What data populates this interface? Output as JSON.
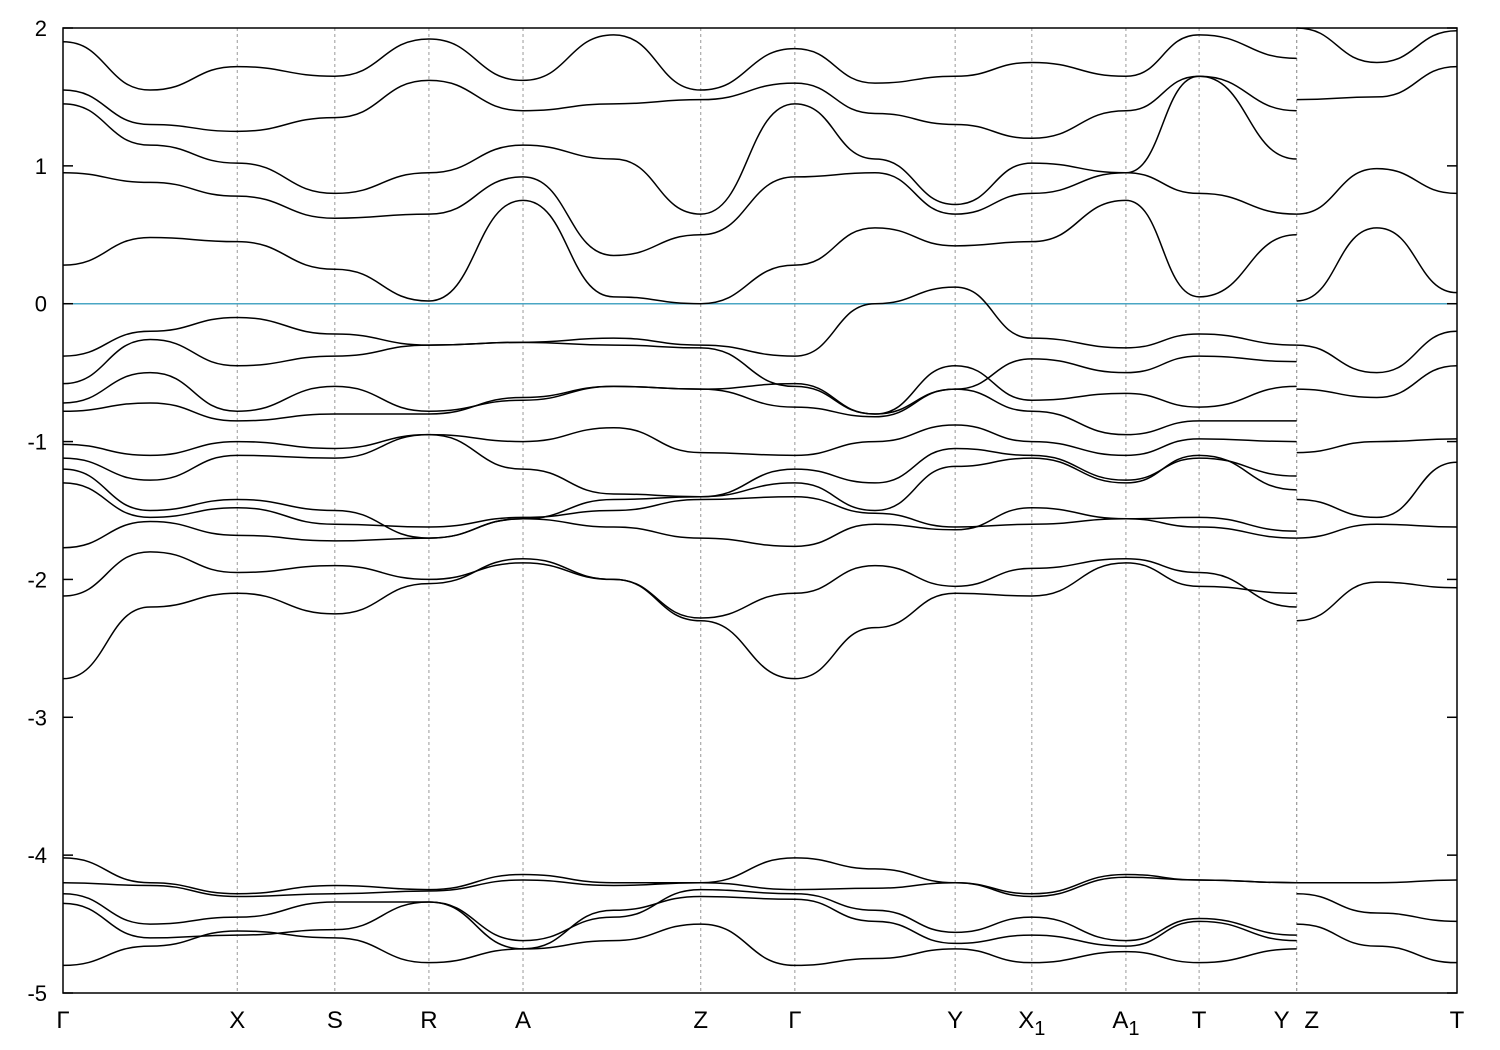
{
  "chart_data": {
    "type": "line",
    "title": "",
    "xlabel": "",
    "ylabel": "",
    "ylim": [
      -5,
      2
    ],
    "yticks": [
      2,
      1,
      0,
      -1,
      -2,
      -3,
      -4,
      -5
    ],
    "grid": false,
    "legend": "none",
    "fermi_level": 0,
    "colors": {
      "bands": "#000000",
      "fermi": "#4aa6c4",
      "kpoint_lines": "#999999"
    },
    "kpoints": [
      {
        "label": "Γ",
        "sub": "",
        "x": 0.0
      },
      {
        "label": "X",
        "sub": "",
        "x": 0.5
      },
      {
        "label": "S",
        "sub": "",
        "x": 0.78
      },
      {
        "label": "R",
        "sub": "",
        "x": 1.05
      },
      {
        "label": "A",
        "sub": "",
        "x": 1.32
      },
      {
        "label": "Z",
        "sub": "",
        "x": 1.83
      },
      {
        "label": "Γ",
        "sub": "",
        "x": 2.1
      },
      {
        "label": "Y",
        "sub": "",
        "x": 2.56
      },
      {
        "label": "X",
        "sub": "1",
        "x": 2.78
      },
      {
        "label": "A",
        "sub": "1",
        "x": 3.05
      },
      {
        "label": "T",
        "sub": "",
        "x": 3.26
      },
      {
        "label": "Y",
        "sub": "",
        "x": 3.54
      },
      {
        "label": "Z",
        "sub": "",
        "x": 3.54
      },
      {
        "label": "T",
        "sub": "",
        "x": 4.0
      }
    ],
    "xlim": [
      0,
      4.0
    ],
    "segment_break_x": 3.54,
    "series": [
      {
        "x": [
          0,
          0.25,
          0.5,
          0.78,
          1.05,
          1.32,
          1.58,
          1.83,
          2.1,
          2.33,
          2.56,
          2.78,
          3.05,
          3.26,
          3.54
        ],
        "y": [
          -2.72,
          -2.2,
          -2.1,
          -2.25,
          -2.03,
          -1.85,
          -2.0,
          -2.3,
          -2.72,
          -2.35,
          -2.1,
          -2.12,
          -1.88,
          -2.05,
          -2.1
        ]
      },
      {
        "x": [
          0,
          0.25,
          0.5,
          0.78,
          1.05,
          1.32,
          1.58,
          1.83,
          2.1,
          2.33,
          2.56,
          2.78,
          3.05,
          3.26,
          3.54
        ],
        "y": [
          -2.12,
          -1.8,
          -1.95,
          -1.9,
          -2.0,
          -1.88,
          -2.0,
          -2.28,
          -2.1,
          -1.9,
          -2.05,
          -1.92,
          -1.85,
          -1.95,
          -2.2
        ]
      },
      {
        "x": [
          0,
          0.25,
          0.5,
          0.78,
          1.05,
          1.32,
          1.58,
          1.83,
          2.1,
          2.33,
          2.56,
          2.78,
          3.05,
          3.26,
          3.54
        ],
        "y": [
          -1.77,
          -1.58,
          -1.68,
          -1.72,
          -1.7,
          -1.56,
          -1.62,
          -1.7,
          -1.76,
          -1.6,
          -1.64,
          -1.48,
          -1.56,
          -1.55,
          -1.65
        ]
      },
      {
        "x": [
          0,
          0.25,
          0.5,
          0.78,
          1.05,
          1.32,
          1.58,
          1.83,
          2.1,
          2.33,
          2.56,
          2.78,
          3.05,
          3.26,
          3.54
        ],
        "y": [
          -1.3,
          -1.55,
          -1.48,
          -1.6,
          -1.62,
          -1.55,
          -1.5,
          -1.42,
          -1.4,
          -1.52,
          -1.62,
          -1.6,
          -1.56,
          -1.62,
          -1.7
        ]
      },
      {
        "x": [
          0,
          0.25,
          0.5,
          0.78,
          1.05,
          1.32,
          1.58,
          1.83,
          2.1,
          2.33,
          2.56,
          2.78,
          3.05,
          3.26,
          3.54
        ],
        "y": [
          -1.2,
          -1.5,
          -1.42,
          -1.5,
          -1.7,
          -1.56,
          -1.42,
          -1.4,
          -1.3,
          -1.5,
          -1.18,
          -1.12,
          -1.3,
          -1.1,
          -1.35
        ]
      },
      {
        "x": [
          0,
          0.25,
          0.5,
          0.78,
          1.05,
          1.32,
          1.58,
          1.83,
          2.1,
          2.33,
          2.56,
          2.78,
          3.05,
          3.26,
          3.54
        ],
        "y": [
          -1.12,
          -1.28,
          -1.1,
          -1.12,
          -0.95,
          -1.2,
          -1.38,
          -1.4,
          -1.2,
          -1.3,
          -1.05,
          -1.1,
          -1.28,
          -1.12,
          -1.25
        ]
      },
      {
        "x": [
          0,
          0.25,
          0.5,
          0.78,
          1.05,
          1.32,
          1.58,
          1.83,
          2.1,
          2.33,
          2.56,
          2.78,
          3.05,
          3.26,
          3.54
        ],
        "y": [
          -1.02,
          -1.1,
          -1.0,
          -1.05,
          -0.95,
          -1.0,
          -0.9,
          -1.08,
          -1.1,
          -1.0,
          -0.88,
          -1.0,
          -1.1,
          -0.98,
          -1.0
        ]
      },
      {
        "x": [
          0,
          0.25,
          0.5,
          0.78,
          1.05,
          1.32,
          1.58,
          1.83,
          2.1,
          2.33,
          2.56,
          2.78,
          3.05,
          3.26,
          3.54
        ],
        "y": [
          -0.78,
          -0.72,
          -0.85,
          -0.8,
          -0.8,
          -0.68,
          -0.6,
          -0.62,
          -0.75,
          -0.82,
          -0.62,
          -0.78,
          -0.95,
          -0.85,
          -0.85
        ]
      },
      {
        "x": [
          0,
          0.25,
          0.5,
          0.78,
          1.05,
          1.32,
          1.58,
          1.83,
          2.1,
          2.33,
          2.56,
          2.78,
          3.05,
          3.26,
          3.54
        ],
        "y": [
          -0.72,
          -0.5,
          -0.78,
          -0.6,
          -0.78,
          -0.7,
          -0.6,
          -0.62,
          -0.58,
          -0.8,
          -0.45,
          -0.7,
          -0.65,
          -0.75,
          -0.6
        ]
      },
      {
        "x": [
          0,
          0.25,
          0.5,
          0.78,
          1.05,
          1.32,
          1.58,
          1.83,
          2.1,
          2.33,
          2.56,
          2.78,
          3.05,
          3.26,
          3.54
        ],
        "y": [
          -0.58,
          -0.26,
          -0.45,
          -0.38,
          -0.3,
          -0.28,
          -0.3,
          -0.32,
          -0.6,
          -0.8,
          -0.62,
          -0.4,
          -0.5,
          -0.38,
          -0.42
        ]
      },
      {
        "x": [
          0,
          0.25,
          0.5,
          0.78,
          1.05,
          1.32,
          1.58,
          1.83,
          2.1,
          2.33,
          2.56,
          2.78,
          3.05,
          3.26,
          3.54
        ],
        "y": [
          -0.38,
          -0.2,
          -0.1,
          -0.22,
          -0.3,
          -0.28,
          -0.25,
          -0.3,
          -0.38,
          0.0,
          0.12,
          -0.25,
          -0.32,
          -0.22,
          -0.3
        ]
      },
      {
        "x": [
          0,
          0.25,
          0.5,
          0.78,
          1.05,
          1.32,
          1.58,
          1.83,
          2.1,
          2.33,
          2.56,
          2.78,
          3.05,
          3.26,
          3.54
        ],
        "y": [
          0.28,
          0.48,
          0.45,
          0.25,
          0.02,
          0.75,
          0.05,
          0.0,
          0.28,
          0.55,
          0.42,
          0.45,
          0.75,
          0.05,
          0.5
        ]
      },
      {
        "x": [
          0,
          0.25,
          0.5,
          0.78,
          1.05,
          1.32,
          1.58,
          1.83,
          2.1,
          2.33,
          2.56,
          2.78,
          3.05,
          3.26,
          3.54
        ],
        "y": [
          0.95,
          0.88,
          0.78,
          0.62,
          0.65,
          0.92,
          0.35,
          0.5,
          0.92,
          0.95,
          0.65,
          0.8,
          0.95,
          0.8,
          0.65
        ]
      },
      {
        "x": [
          0,
          0.25,
          0.5,
          0.78,
          1.05,
          1.32,
          1.58,
          1.83,
          2.1,
          2.33,
          2.56,
          2.78,
          3.05,
          3.26,
          3.54
        ],
        "y": [
          1.45,
          1.15,
          1.02,
          0.8,
          0.95,
          1.15,
          1.05,
          0.65,
          1.45,
          1.05,
          0.72,
          1.02,
          0.95,
          1.65,
          1.05
        ]
      },
      {
        "x": [
          0,
          0.25,
          0.5,
          0.78,
          1.05,
          1.32,
          1.58,
          1.83,
          2.1,
          2.33,
          2.56,
          2.78,
          3.05,
          3.26,
          3.54
        ],
        "y": [
          1.55,
          1.3,
          1.25,
          1.35,
          1.62,
          1.4,
          1.45,
          1.48,
          1.6,
          1.38,
          1.3,
          1.2,
          1.4,
          1.65,
          1.4
        ]
      },
      {
        "x": [
          0,
          0.25,
          0.5,
          0.78,
          1.05,
          1.32,
          1.58,
          1.83,
          2.1,
          2.33,
          2.56,
          2.78,
          3.05,
          3.26,
          3.54
        ],
        "y": [
          1.9,
          1.55,
          1.72,
          1.65,
          1.92,
          1.62,
          1.95,
          1.55,
          1.85,
          1.6,
          1.65,
          1.75,
          1.65,
          1.95,
          1.78
        ]
      },
      {
        "x": [
          0,
          0.25,
          0.5,
          0.78,
          1.05,
          1.32,
          1.58,
          1.83,
          2.1,
          2.33,
          2.56,
          2.78,
          3.05,
          3.26,
          3.54
        ],
        "y": [
          -4.02,
          -4.2,
          -4.28,
          -4.22,
          -4.25,
          -4.14,
          -4.2,
          -4.2,
          -4.02,
          -4.1,
          -4.2,
          -4.28,
          -4.14,
          -4.18,
          -4.2
        ]
      },
      {
        "x": [
          0,
          0.25,
          0.5,
          0.78,
          1.05,
          1.32,
          1.58,
          1.83,
          2.1,
          2.33,
          2.56,
          2.78,
          3.05,
          3.26,
          3.54
        ],
        "y": [
          -4.2,
          -4.22,
          -4.3,
          -4.28,
          -4.26,
          -4.18,
          -4.22,
          -4.2,
          -4.25,
          -4.24,
          -4.2,
          -4.3,
          -4.16,
          -4.18,
          -4.2
        ]
      },
      {
        "x": [
          0,
          0.25,
          0.5,
          0.78,
          1.05,
          1.32,
          1.58,
          1.83,
          2.1,
          2.33,
          2.56,
          2.78,
          3.05,
          3.26,
          3.54
        ],
        "y": [
          -4.28,
          -4.5,
          -4.45,
          -4.34,
          -4.34,
          -4.62,
          -4.45,
          -4.25,
          -4.28,
          -4.4,
          -4.56,
          -4.45,
          -4.62,
          -4.46,
          -4.58
        ]
      },
      {
        "x": [
          0,
          0.25,
          0.5,
          0.78,
          1.05,
          1.32,
          1.58,
          1.83,
          2.1,
          2.33,
          2.56,
          2.78,
          3.05,
          3.26,
          3.54
        ],
        "y": [
          -4.35,
          -4.6,
          -4.58,
          -4.54,
          -4.34,
          -4.68,
          -4.4,
          -4.3,
          -4.32,
          -4.48,
          -4.64,
          -4.58,
          -4.66,
          -4.48,
          -4.62
        ]
      },
      {
        "x": [
          0,
          0.25,
          0.5,
          0.78,
          1.05,
          1.32,
          1.58,
          1.83,
          2.1,
          2.33,
          2.56,
          2.78,
          3.05,
          3.26,
          3.54
        ],
        "y": [
          -4.8,
          -4.66,
          -4.55,
          -4.6,
          -4.78,
          -4.68,
          -4.62,
          -4.5,
          -4.8,
          -4.75,
          -4.68,
          -4.78,
          -4.7,
          -4.78,
          -4.68
        ]
      },
      {
        "x": [
          3.54,
          3.77,
          4.0
        ],
        "y": [
          -2.3,
          -2.02,
          -2.06
        ]
      },
      {
        "x": [
          3.54,
          3.77,
          4.0
        ],
        "y": [
          -1.7,
          -1.6,
          -1.62
        ]
      },
      {
        "x": [
          3.54,
          3.77,
          4.0
        ],
        "y": [
          -1.42,
          -1.55,
          -1.15
        ]
      },
      {
        "x": [
          3.54,
          3.77,
          4.0
        ],
        "y": [
          -1.08,
          -1.0,
          -0.98
        ]
      },
      {
        "x": [
          3.54,
          3.77,
          4.0
        ],
        "y": [
          -0.62,
          -0.68,
          -0.45
        ]
      },
      {
        "x": [
          3.54,
          3.77,
          4.0
        ],
        "y": [
          -0.3,
          -0.5,
          -0.2
        ]
      },
      {
        "x": [
          3.54,
          3.77,
          4.0
        ],
        "y": [
          0.02,
          0.55,
          0.08
        ]
      },
      {
        "x": [
          3.54,
          3.77,
          4.0
        ],
        "y": [
          0.65,
          0.98,
          0.8
        ]
      },
      {
        "x": [
          3.54,
          3.77,
          4.0
        ],
        "y": [
          1.48,
          1.5,
          1.72
        ]
      },
      {
        "x": [
          3.54,
          3.77,
          4.0
        ],
        "y": [
          2.0,
          1.75,
          1.98
        ]
      },
      {
        "x": [
          3.54,
          3.77,
          4.0
        ],
        "y": [
          -4.2,
          -4.2,
          -4.18
        ]
      },
      {
        "x": [
          3.54,
          3.77,
          4.0
        ],
        "y": [
          -4.28,
          -4.42,
          -4.48
        ]
      },
      {
        "x": [
          3.54,
          3.77,
          4.0
        ],
        "y": [
          -4.5,
          -4.66,
          -4.78
        ]
      }
    ]
  }
}
